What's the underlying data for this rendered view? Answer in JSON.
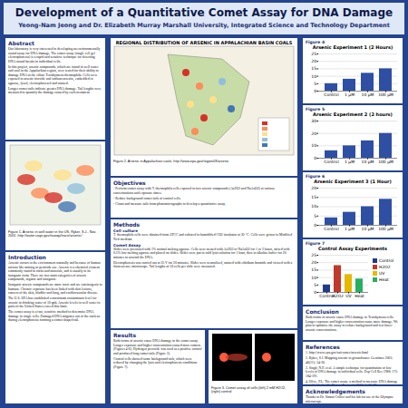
{
  "poster": {
    "title": "Development of a Quantitative Comet Assay for DNA Damage",
    "authors": "Yeong-Nam Jeong and Dr. Elizabeth Murray Marshall University, Integrated Science and Technology Department",
    "sections": [
      {
        "heading": "Abstract",
        "paragraphs": [
          "Our laboratory is very interested in developing an environmentally sound assay for DNA damage. The comet assay (single cell gel electrophoresis) is a rapid and sensitive technique for detecting DNA strand breaks in individual cells.",
          "In this project, arsenic compounds, which are found in well water and coal in the Appalachian region, were tested for their ability to damage DNA in the ciliate Tetrahymena thermophila. Cells were exposed to arsenic trioxide and sodium arsenite, embedded in agarose, lysed, electrophoresed and stained.",
          "Longer comet tails indicate greater DNA damage. Tail lengths were measured to quantify the damage caused by each treatment."
        ]
      },
      {
        "heading": "Introduction",
        "paragraphs": [
          "Arsenic occurs in the environment naturally and because of human actions like mining or pesticide use. Arsenic is a chemical element commonly found in rocks and minerals, and is usually in its inorganic form. There are two main categories of arsenic compounds, organic and inorganic.",
          "Inorganic arsenic compounds are more toxic and are carcinogenic to humans. Chronic exposure has been linked with skin lesions, cancers of the skin, bladder and lung, and cardiovascular disease.",
          "The U.S. EPA has established a maximum contaminant level for arsenic in drinking water of 10 ppb. Arsenic levels in well water in parts of the United States exceed this limit.",
          "The comet assay is a fast, sensitive method to determine DNA damage in single cells. Damaged DNA migrates out of the nucleus during electrophoresis forming a comet shaped tail."
        ]
      },
      {
        "heading": "Objectives",
        "paragraphs": [
          "- Perform comet assay with T. thermophila cells exposed to two arsenic compounds (As2O3 and NaAsO2) at various concentrations and exposure times.",
          "- Reduce background comet tails of control cells.",
          "- Count and measure tails from photomicrographs to develop a quantitative assay."
        ]
      },
      {
        "heading": "Methods",
        "subheading": [
          "Cell culture",
          "Comet Assay"
        ],
        "paragraphs": [
          "T. thermophila cells were obtained from ATCC and cultured in humidified CO2 incubator at 30 °C. Cells were grown in Modified Neff medium.",
          "Slides were precoated with 1% normal melting agarose. Cells were treated with As2O3 or NaAsO2 for 1 or 2 hours, mixed with 0.5% low melting agarose and placed on slides. Slides were put in cold lysis solution for 1 hour, then in alkaline buffer for 20 minutes to unwind the DNA.",
          "Electrophoresis was carried out at 25 V for 20 minutes. Slides were neutralized, stained with ethidium bromide and viewed with a fluorescence microscope. Tail lengths of 50 cells per slide were measured."
        ]
      },
      {
        "heading": "Results",
        "paragraphs": [
          "Both forms of arsenic cause DNA damage in the comet assay. Longer exposure and higher concentration caused more comets (Figures 4-6). Hydrogen peroxide was used as a positive control and produced long comet tails (Figure 3).",
          "Control cells showed some background tails, which were reduced by changing the lysis and electrophoresis conditions (Figure 7)."
        ]
      },
      {
        "heading": "Conclusion",
        "paragraphs": [
          "Both forms of arsenic cause DNA damage in Tetrahymena cells. Longer exposure and higher concentration cause more damage. We plan to optimize the assay to reduce background and test lower arsenic concentrations."
        ]
      },
      {
        "heading": "References",
        "paragraphs": [
          "1. http://www.epa.gov/safewater/arsenic.html",
          "2. Ryker, S.J. Mapping arsenic in groundwater. Geotimes 2001; 46(11): 34-36.",
          "3. Singh, N.P. et al. A simple technique for quantitation of low levels of DNA damage in individual cells. Exp Cell Res 1988; 175: 184-191.",
          "4. Olive, P.L. The comet assay: a method to measure DNA damage in individual cells. Nature Protocols 2006; 1: 23-29."
        ]
      },
      {
        "heading": "Acknowledgements",
        "paragraphs": [
          "Thanks to Dr. Simon Collier and his lab for use of the Olympus microscope."
        ]
      }
    ],
    "figures": [
      {
        "label": "Figure 1",
        "caption": "Figure 1. Arsenic in well water in the US. Ryker, S.J., Nov. 2001. http://water.usgs.gov/nawqa/trace/arsenic/"
      },
      {
        "label": "Figure 2",
        "title": "REGIONAL DISTRIBUTION OF ARSENIC IN APPALACHIAN BASIN COALS",
        "caption": "Figure 2. Arsenic in Appalachian coals. http://www.epa.gov/region03/arsenic"
      },
      {
        "label": "Figure 3",
        "caption": "Figure 3. Comet assay of cells (left) 2 mM H2O2, (right) control"
      }
    ]
  },
  "chart_data": [
    {
      "type": "bar",
      "figure": "Figure 4",
      "title": "Arsenic Experiment 1 (2 Hours)",
      "categories": [
        "Control",
        "1 µM",
        "10 µM",
        "100 µM"
      ],
      "values": [
        5,
        8,
        12,
        15
      ],
      "color": "#2e4fa3",
      "ylim": [
        0,
        25
      ],
      "yticks": [
        0,
        5,
        10,
        15,
        20,
        25
      ],
      "grid": true
    },
    {
      "type": "bar",
      "figure": "Figure 5",
      "title": "Arsenic Experiment 2 (2 hours)",
      "categories": [
        "Control",
        "1 µM",
        "10 µM",
        "100 µM"
      ],
      "values": [
        6,
        10,
        14,
        20
      ],
      "color": "#2e4fa3",
      "ylim": [
        0,
        30
      ],
      "yticks": [
        0,
        10,
        20,
        30
      ],
      "grid": true
    },
    {
      "type": "bar",
      "figure": "Figure 6",
      "title": "Arsenic Experiment 3 (1 Hour)",
      "categories": [
        "Control",
        "1 µM",
        "10 µM",
        "100 µM"
      ],
      "values": [
        4,
        7,
        10,
        14
      ],
      "color": "#2e4fa3",
      "ylim": [
        0,
        20
      ],
      "yticks": [
        0,
        5,
        10,
        15,
        20
      ],
      "grid": true
    },
    {
      "type": "bar",
      "figure": "Figure 7",
      "title": "Control Assay Experiments",
      "categories": [
        "Control",
        "H2O2",
        "UV",
        "Heat"
      ],
      "values": [
        5,
        18,
        12,
        9
      ],
      "colors": [
        "#1f3c88",
        "#c0392b",
        "#e6b800",
        "#27ae60"
      ],
      "ylim": [
        0,
        25
      ],
      "yticks": [
        0,
        5,
        10,
        15,
        20,
        25
      ],
      "grid": true,
      "legend": "right"
    }
  ]
}
